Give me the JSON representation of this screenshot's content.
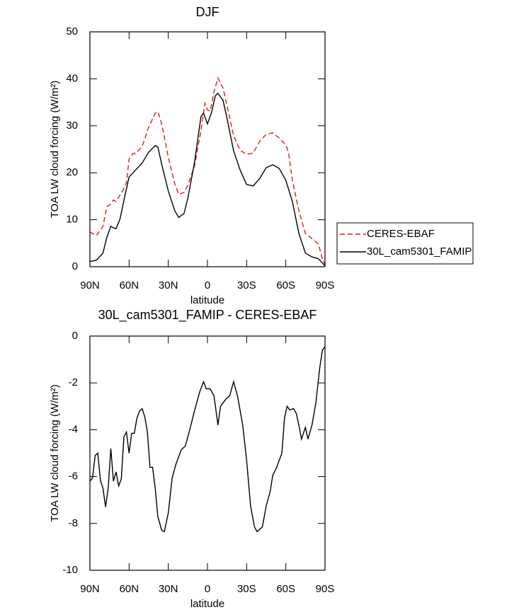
{
  "chart_data": [
    {
      "type": "line",
      "title": "DJF",
      "xlabel": "latitude",
      "ylabel": "TOA LW cloud forcing (W/m²)",
      "xlim": [
        90,
        -90
      ],
      "xticks": [
        {
          "value": 90,
          "label": "90N"
        },
        {
          "value": 60,
          "label": "60N"
        },
        {
          "value": 30,
          "label": "30N"
        },
        0,
        {
          "value": -30,
          "label": "30S"
        },
        {
          "value": -60,
          "label": "60S"
        },
        {
          "value": -90,
          "label": "90S"
        }
      ],
      "ylim": [
        0,
        50
      ],
      "yticks": [
        0,
        10,
        20,
        30,
        40,
        50
      ],
      "legend": "right",
      "series": [
        {
          "name": "CERES-EBAF",
          "color": "#e41a1c",
          "linestyle": "dashed",
          "x": [
            90,
            85,
            80,
            77,
            75,
            72,
            70,
            65,
            62,
            60,
            57,
            55,
            50,
            45,
            40,
            38,
            35,
            30,
            25,
            22,
            18,
            15,
            10,
            5,
            2,
            0,
            -2,
            -5,
            -8,
            -12,
            -15,
            -20,
            -25,
            -30,
            -35,
            -40,
            -45,
            -50,
            -55,
            -60,
            -62,
            -65,
            -70,
            -75,
            -80,
            -85,
            -88,
            -90
          ],
          "values": [
            7.4,
            6.6,
            8.6,
            12.8,
            13.1,
            14.2,
            13.9,
            16.1,
            17.9,
            22.9,
            24.1,
            24.1,
            25.6,
            29.7,
            32.7,
            33,
            30.4,
            23.3,
            17.6,
            15.4,
            15.8,
            17.3,
            21.4,
            28.9,
            34.8,
            33.4,
            33.1,
            37.2,
            40.2,
            38,
            34.2,
            27.9,
            24.8,
            23.9,
            24.2,
            26.7,
            28.2,
            28.5,
            27.4,
            25.9,
            24.4,
            18.4,
            11.9,
            7.1,
            6,
            4.8,
            1.7,
            0.5
          ]
        },
        {
          "name": "30L_cam5301_FAMIP",
          "color": "#000000",
          "linestyle": "solid",
          "x": [
            90,
            85,
            80,
            77,
            74,
            72,
            70,
            67,
            63,
            60,
            55,
            50,
            45,
            40,
            38,
            35,
            30,
            25,
            22,
            18,
            15,
            10,
            5,
            3,
            0,
            -3,
            -6,
            -8,
            -12,
            -15,
            -20,
            -25,
            -30,
            -35,
            -40,
            -45,
            -50,
            -55,
            -60,
            -65,
            -70,
            -75,
            -80,
            -85,
            -90
          ],
          "values": [
            1.1,
            1.4,
            2.9,
            6.3,
            8.6,
            8.3,
            8.1,
            10.1,
            15.4,
            19.1,
            20.6,
            22.1,
            24.4,
            25.8,
            25.5,
            21.8,
            16.1,
            11.9,
            10.5,
            11.3,
            14.6,
            22.1,
            31.9,
            32.7,
            30.4,
            32.7,
            36.4,
            36.9,
            35.4,
            31.5,
            24.7,
            20.6,
            17.5,
            17.2,
            18.8,
            21.1,
            21.7,
            20.9,
            18.4,
            13.9,
            7.1,
            2.9,
            2.1,
            1.7,
            0.2
          ]
        }
      ]
    },
    {
      "type": "line",
      "title": "30L_cam5301_FAMIP - CERES-EBAF",
      "xlabel": "latitude",
      "ylabel": "TOA LW cloud forcing (W/m²)",
      "xlim": [
        90,
        -90
      ],
      "xticks": [
        {
          "value": 90,
          "label": "90N"
        },
        {
          "value": 60,
          "label": "60N"
        },
        {
          "value": 30,
          "label": "30N"
        },
        0,
        {
          "value": -30,
          "label": "30S"
        },
        {
          "value": -60,
          "label": "60S"
        },
        {
          "value": -90,
          "label": "90S"
        }
      ],
      "ylim": [
        -10,
        0
      ],
      "yticks": [
        -10,
        -8,
        -6,
        -4,
        -2,
        0
      ],
      "color": "#000000",
      "x": [
        90,
        88,
        86,
        84,
        82,
        80,
        78,
        76,
        74,
        72,
        70,
        68,
        66,
        64,
        62,
        60,
        58,
        56,
        54,
        52,
        50,
        48,
        46,
        44,
        42,
        40,
        38,
        35,
        33,
        30,
        27,
        24,
        20,
        17,
        14,
        10,
        6,
        3,
        1,
        -2,
        -5,
        -8,
        -10,
        -14,
        -17,
        -20,
        -23,
        -27,
        -30,
        -33,
        -36,
        -38,
        -42,
        -45,
        -48,
        -50,
        -53,
        -55,
        -57,
        -59,
        -61,
        -63,
        -66,
        -68,
        -70,
        -72,
        -75,
        -77,
        -80,
        -83,
        -86,
        -88,
        -90
      ],
      "values": [
        -6.2,
        -6.05,
        -5.1,
        -5.0,
        -6.15,
        -6.5,
        -7.3,
        -6.5,
        -4.8,
        -6.2,
        -5.8,
        -6.4,
        -6.1,
        -4.3,
        -4.1,
        -5.0,
        -4.15,
        -4.15,
        -3.5,
        -3.2,
        -3.1,
        -3.45,
        -4.1,
        -5.6,
        -5.6,
        -6.5,
        -7.7,
        -8.3,
        -8.35,
        -7.55,
        -6.05,
        -5.45,
        -4.85,
        -4.7,
        -4.1,
        -3.2,
        -2.4,
        -1.95,
        -2.25,
        -2.25,
        -2.55,
        -3.8,
        -3.0,
        -2.7,
        -2.55,
        -1.95,
        -2.55,
        -3.8,
        -5.3,
        -7.25,
        -8.15,
        -8.35,
        -8.15,
        -7.25,
        -6.65,
        -5.95,
        -5.6,
        -5.3,
        -5.0,
        -3.5,
        -3.0,
        -3.15,
        -3.1,
        -3.3,
        -3.8,
        -4.4,
        -3.9,
        -4.4,
        -3.8,
        -2.85,
        -1.35,
        -0.6,
        -0.45
      ]
    }
  ]
}
